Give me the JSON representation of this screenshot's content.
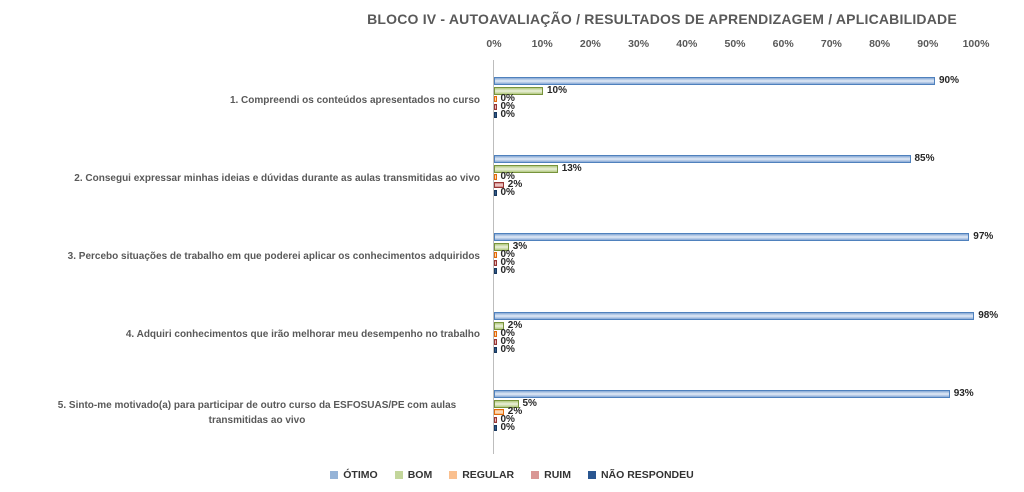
{
  "chart_data": {
    "type": "bar",
    "orientation": "horizontal",
    "title": "BLOCO IV - AUTOAVALIAÇÃO / RESULTADOS DE APRENDIZAGEM / APLICABILIDADE",
    "categories": [
      "1. Compreendi os conteúdos apresentados no curso",
      "2. Consegui expressar minhas ideias e dúvidas durante as aulas transmitidas ao vivo",
      "3. Percebo situações de trabalho em que poderei aplicar os conhecimentos adquiridos",
      "4. Adquiri conhecimentos que irão melhorar meu desempenho no trabalho",
      "5. Sinto-me motivado(a) para participar de outro curso da ESFOSUAS/PE com aulas transmitidas ao vivo"
    ],
    "series": [
      {
        "name": "ÓTIMO",
        "values": [
          90,
          85,
          97,
          98,
          93
        ],
        "legend_color": "#95B3D7",
        "border": "#4F81BD",
        "fill_dark": "#86A8D5",
        "fill_light": "#E3EBF7"
      },
      {
        "name": "BOM",
        "values": [
          10,
          13,
          3,
          2,
          5
        ],
        "legend_color": "#C3D69B",
        "border": "#77933C",
        "fill_dark": "#B3C97F",
        "fill_light": "#EBF1DC"
      },
      {
        "name": "REGULAR",
        "values": [
          0,
          0,
          0,
          0,
          2
        ],
        "legend_color": "#FAC08F",
        "border": "#E26B0A",
        "fill_dark": "#F9B472",
        "fill_light": "#FDE5CC"
      },
      {
        "name": "RUIM",
        "values": [
          0,
          2,
          0,
          0,
          0
        ],
        "legend_color": "#D99694",
        "border": "#963634",
        "fill_dark": "#CD807D",
        "fill_light": "#F3D6D5"
      },
      {
        "name": "NÃO RESPONDEU",
        "values": [
          0,
          0,
          0,
          0,
          0
        ],
        "legend_color": "#2A5690",
        "border": "#17375E",
        "fill_dark": "#1F497D",
        "fill_light": "#3A648F"
      }
    ],
    "x_axis": {
      "min": 0,
      "max": 100,
      "ticks": [
        "0%",
        "10%",
        "20%",
        "30%",
        "40%",
        "50%",
        "60%",
        "70%",
        "80%",
        "90%",
        "100%"
      ]
    },
    "data_label_format": "{v}%",
    "legend_position": "bottom",
    "grid": false,
    "background": "#FFFFFF",
    "text_color": "#595959"
  }
}
